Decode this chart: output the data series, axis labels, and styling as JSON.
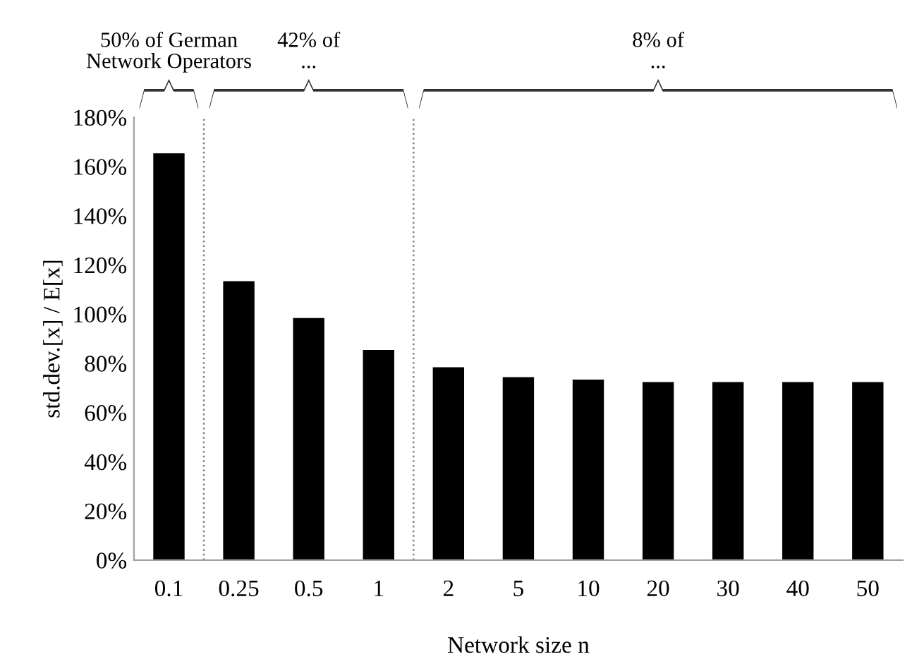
{
  "chart_data": {
    "type": "bar",
    "xlabel": "Network size n",
    "ylabel": "std.dev.[x] / E[x]",
    "categories": [
      "0.1",
      "0.25",
      "0.5",
      "1",
      "2",
      "5",
      "10",
      "20",
      "30",
      "40",
      "50"
    ],
    "values": [
      165,
      113,
      98,
      85,
      78,
      74,
      73,
      72,
      72,
      72,
      72
    ],
    "color": "#000000",
    "ylim": [
      0,
      180
    ],
    "yticks": [
      {
        "value": 0,
        "label": "0%"
      },
      {
        "value": 20,
        "label": "20%"
      },
      {
        "value": 40,
        "label": "40%"
      },
      {
        "value": 60,
        "label": "60%"
      },
      {
        "value": 80,
        "label": "80%"
      },
      {
        "value": 100,
        "label": "100%"
      },
      {
        "value": 120,
        "label": "120%"
      },
      {
        "value": 140,
        "label": "140%"
      },
      {
        "value": 160,
        "label": "160%"
      },
      {
        "value": 180,
        "label": "180%"
      }
    ],
    "grid": false,
    "annotations": [
      "50% of German\nNetwork Operators",
      "42% of\n...",
      "8% of\n..."
    ]
  }
}
